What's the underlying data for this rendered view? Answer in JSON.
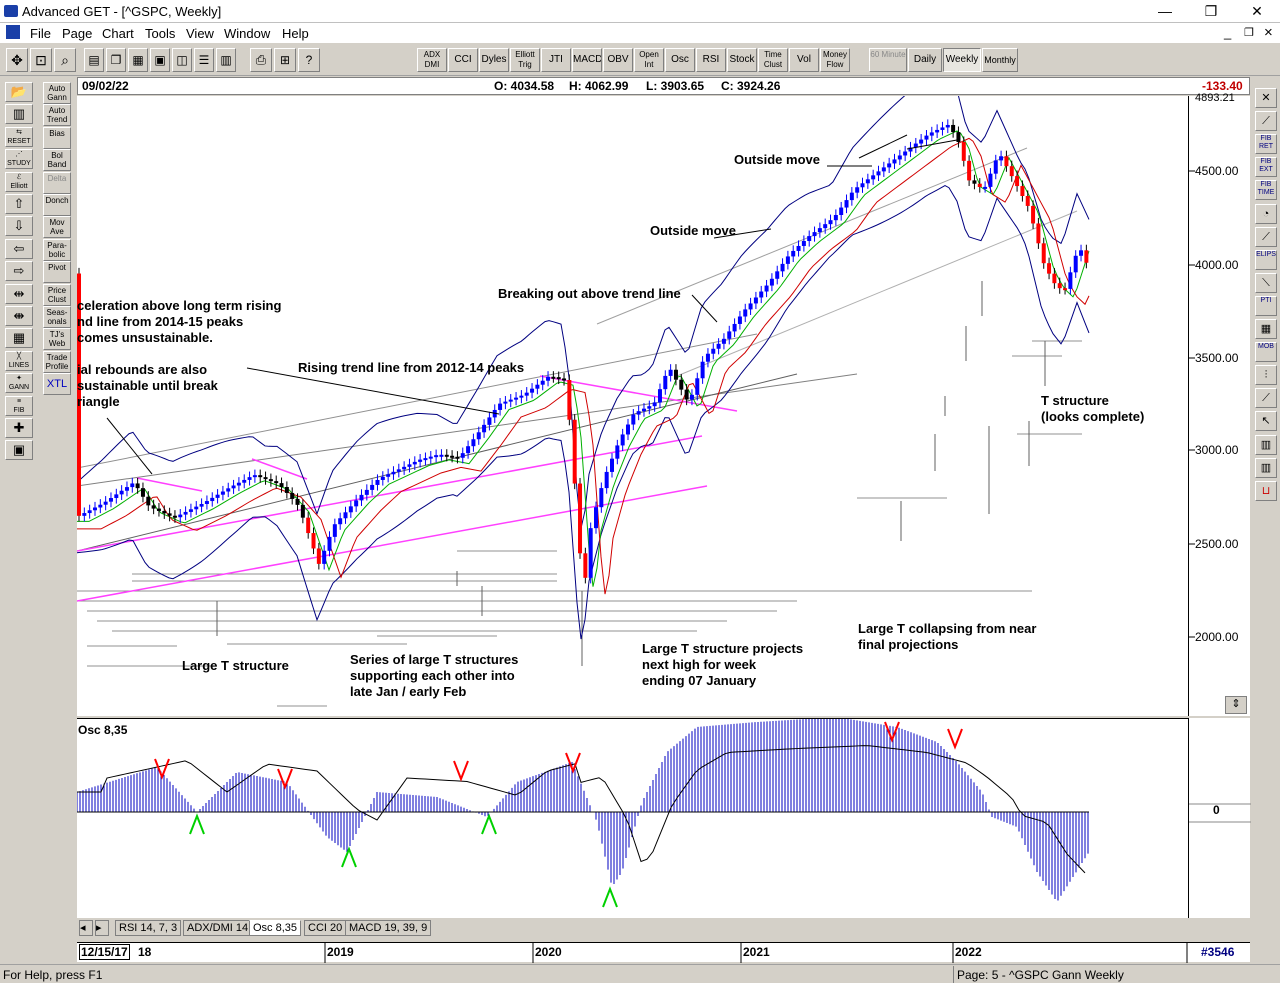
{
  "window": {
    "title": "Advanced GET - [^GSPC, Weekly]",
    "min_glyph": "—",
    "max_glyph": "❐",
    "close_glyph": "✕",
    "child_min_glyph": "_",
    "child_max_glyph": "❐",
    "child_close_glyph": "×"
  },
  "menu": [
    "File",
    "Page",
    "Chart",
    "Tools",
    "View",
    "Window",
    "Help"
  ],
  "toolbar": {
    "icon_buttons": [
      "pointer-icon",
      "new-page-icon",
      "zoom-icon",
      "document-icon",
      "copy-icon",
      "chart-icon",
      "layout-icon",
      "window-icon",
      "list-icon",
      "print-icon",
      "help-icon"
    ],
    "study_buttons": [
      "ADX DMI",
      "CCI",
      "Dyles",
      "Elliott Trig",
      "JTI",
      "MACD",
      "OBV",
      "Open Int",
      "Osc",
      "RSI",
      "Stock",
      "Time Clust",
      "Vol",
      "Money Flow"
    ],
    "period_buttons": [
      "60 Minute",
      "Daily",
      "Weekly",
      "Monthly"
    ],
    "active_period": "Weekly"
  },
  "left_tools": {
    "col1": [
      "open-folder-icon",
      "bars-icon",
      "reset-icon",
      "study-icon",
      "elliott-icon",
      "up-arrow-icon",
      "down-arrow-icon",
      "left-arrow-icon",
      "right-arrow-icon",
      "compress-icon",
      "expand-icon",
      "grid-icon",
      "lines-icon",
      "gann-icon",
      "fib-icon",
      "crosshair-icon",
      "settings-icon"
    ],
    "col1_labels": [
      "",
      "",
      "RESET",
      "STUDY",
      "Elliott",
      "",
      "",
      "",
      "",
      "",
      "",
      "",
      "LINES",
      "GANN",
      "FIB",
      "",
      ""
    ],
    "col2": [
      "Auto Gann",
      "Auto Trend",
      "Bias",
      "Bol Band",
      "Delta",
      "Donch",
      "Mov Ave",
      "Para-bolic",
      "Pivot",
      "Price Clust",
      "Seas-onals",
      "TJ's Web",
      "Trade Profile",
      "XTL"
    ]
  },
  "right_tools": [
    "close-x-icon",
    "pen-icon",
    "fib-ret-icon",
    "fib-ext-icon",
    "fib-time-icon",
    "fib-circle-icon",
    "fan-icon",
    "ellipse-icon",
    "channel-icon",
    "pti-icon",
    "grid-icon",
    "mob-icon",
    "lines-icon",
    "diagonal-icon",
    "cursor-icon",
    "channel2-icon",
    "channel3-icon",
    "unit-icon"
  ],
  "right_tool_labels": [
    "",
    "",
    "FIB RET",
    "FIB EXT",
    "FIB TIME",
    "",
    "",
    "ELIPS",
    "",
    "PTI",
    "",
    "MOB",
    "",
    "",
    "",
    "",
    "",
    ""
  ],
  "infobar": {
    "date": "09/02/22",
    "open": "O: 4034.58",
    "high": "H: 4062.99",
    "low": "L: 3903.65",
    "close": "C: 3924.26",
    "change": "-133.40"
  },
  "price_scale": {
    "top_label": "4893.21",
    "labels": [
      "4500.00",
      "4000.00",
      "3500.00",
      "3000.00",
      "2500.00",
      "2000.00"
    ]
  },
  "annotations": {
    "acceleration": "celeration above long term rising\nnd line from 2014-15 peaks\ncomes unsustainable.",
    "rebounds": "ial rebounds are also\nsustainable until break\nriangle",
    "rising_trend": "Rising trend line from 2012-14 peaks",
    "breaking_out": "Breaking out above trend line",
    "outside_move_1": "Outside move",
    "outside_move_2": "Outside move",
    "t_structure": "T structure\n(looks complete)",
    "large_t": "Large T structure",
    "series_t": "Series of large T structures\nsupporting each other into\nlate Jan / early Feb",
    "large_t_projects": "Large T structure projects\nnext high for week\nending 07 January",
    "large_t_collapsing": "Large T collapsing from near\nfinal projections"
  },
  "oscillator": {
    "label": "Osc 8,35",
    "zero_label": "0"
  },
  "tabs": [
    "RSI 14, 7, 3",
    "ADX/DMI 14",
    "Osc 8,35",
    "CCI 20",
    "MACD 19, 39, 9"
  ],
  "active_tab": "Osc 8,35",
  "datebar": {
    "start": "12/15/17",
    "start_suffix": "18",
    "years": [
      "2019",
      "2020",
      "2021",
      "2022"
    ],
    "bar_count": "#3546"
  },
  "status": {
    "help": "For Help, press F1",
    "page": "Page: 5 - ^GSPC Gann Weekly"
  },
  "colors": {
    "up_candle": "#0000ff",
    "down_candle": "#ff0000",
    "trend_pink": "#ff40ff",
    "band": "#000080",
    "ma_green": "#00b000",
    "ma_red": "#d00000",
    "osc_bar": "#0000c0",
    "peak_arrow": "#ff0000",
    "trough_arrow": "#00d000"
  }
}
